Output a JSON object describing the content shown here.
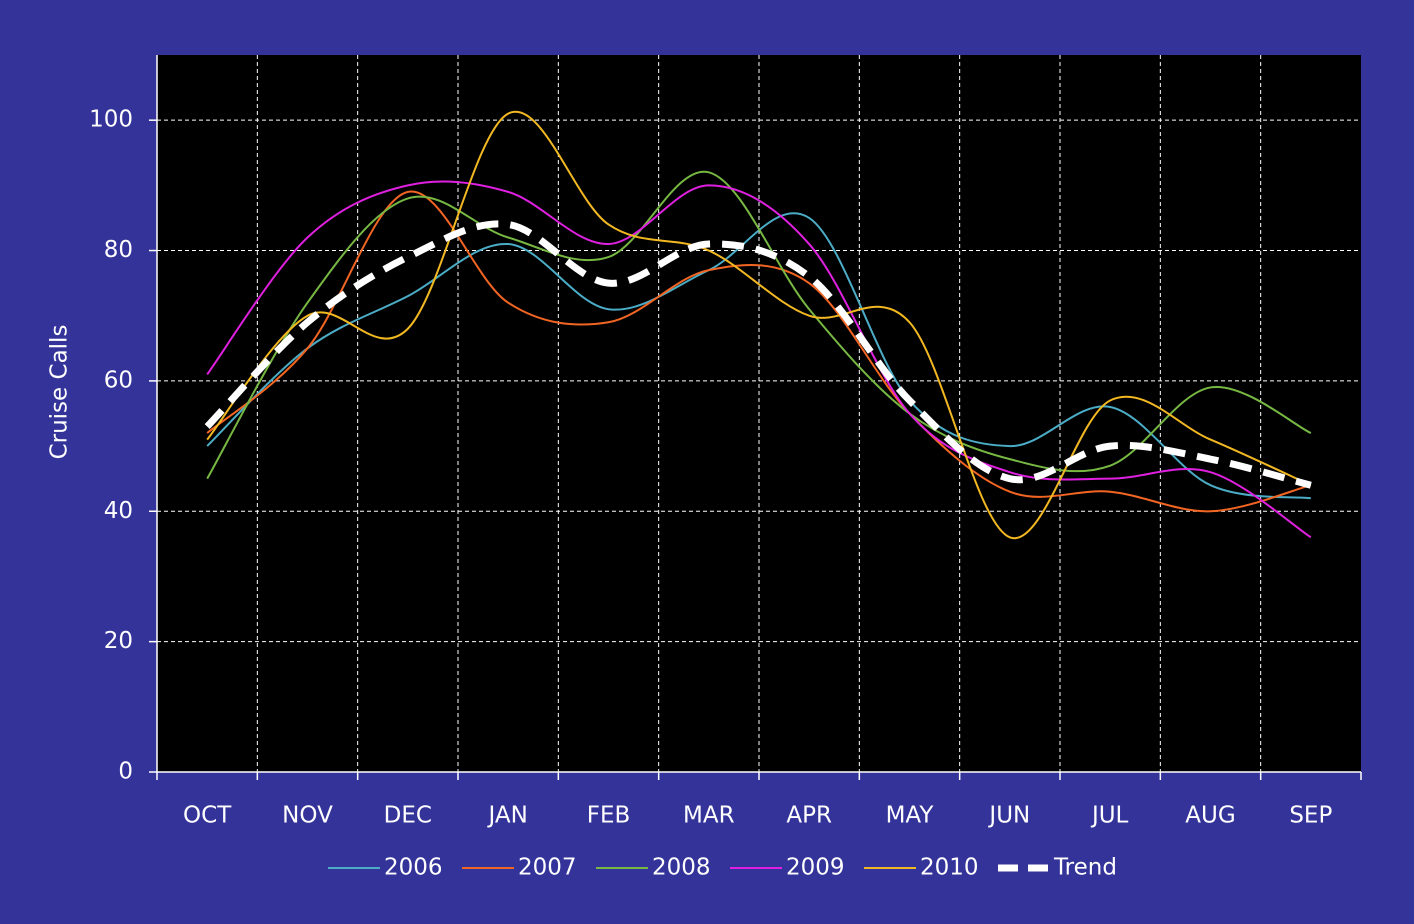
{
  "chart_data": {
    "type": "line",
    "y_label": "Cruise Calls",
    "categories": [
      "OCT",
      "NOV",
      "DEC",
      "JAN",
      "FEB",
      "MAR",
      "APR",
      "MAY",
      "JUN",
      "JUL",
      "AUG",
      "SEP"
    ],
    "ylim": [
      0,
      110
    ],
    "yticks": [
      0,
      20,
      40,
      60,
      80,
      100
    ],
    "grid": true,
    "smooth": true,
    "legend": "bottom",
    "series": [
      {
        "name": "2006",
        "color": "#4bacc6",
        "values": [
          50,
          65,
          73,
          81,
          71,
          77,
          85,
          57,
          50,
          56,
          44,
          42
        ]
      },
      {
        "name": "2007",
        "color": "#f26522",
        "values": [
          52,
          65,
          89,
          72,
          69,
          77,
          75,
          55,
          43,
          43,
          40,
          44
        ]
      },
      {
        "name": "2008",
        "color": "#77b843",
        "values": [
          45,
          72,
          88,
          82,
          79,
          92,
          71,
          55,
          48,
          47,
          59,
          52
        ]
      },
      {
        "name": "2009",
        "color": "#e020e0",
        "values": [
          61,
          82,
          90,
          89,
          81,
          90,
          81,
          55,
          46,
          45,
          46,
          36
        ]
      },
      {
        "name": "2010",
        "color": "#f2b822",
        "values": [
          51,
          70,
          68,
          101,
          84,
          80,
          70,
          69,
          36,
          57,
          51,
          44
        ]
      },
      {
        "name": "Trend",
        "color": "#ffffff",
        "dashed": true,
        "values": [
          53,
          69,
          79,
          84,
          75,
          81,
          76,
          57,
          45,
          50,
          48,
          44
        ]
      }
    ]
  }
}
